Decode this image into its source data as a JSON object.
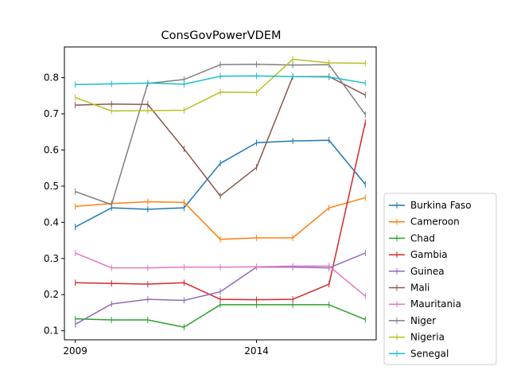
{
  "chart_data": {
    "type": "line",
    "title": "ConsGovPowerVDEM",
    "xlabel": "",
    "ylabel": "",
    "x": [
      2009,
      2010,
      2011,
      2012,
      2013,
      2014,
      2015,
      2016,
      2017
    ],
    "xticks": [
      2009,
      2014
    ],
    "xlim": [
      2008.7,
      2017.3
    ],
    "ylim": [
      0.075,
      0.885
    ],
    "yticks": [
      0.1,
      0.2,
      0.3,
      0.4,
      0.5,
      0.6,
      0.7,
      0.8
    ],
    "ytick_labels": [
      "0.1",
      "0.2",
      "0.3",
      "0.4",
      "0.5",
      "0.6",
      "0.7",
      "0.8"
    ],
    "legend_position": "lower-right-outside",
    "grid": false,
    "marker": "vertical-tick",
    "series": [
      {
        "name": "Burkina Faso",
        "color": "#1f77b4",
        "values": [
          0.387,
          0.44,
          0.436,
          0.44,
          0.563,
          0.62,
          0.625,
          0.627,
          0.505
        ]
      },
      {
        "name": "Cameroon",
        "color": "#ff7f0e",
        "values": [
          0.444,
          0.452,
          0.457,
          0.455,
          0.353,
          0.357,
          0.357,
          0.44,
          0.468
        ]
      },
      {
        "name": "Chad",
        "color": "#2ca02c",
        "values": [
          0.133,
          0.13,
          0.13,
          0.11,
          0.172,
          0.172,
          0.172,
          0.172,
          0.131
        ]
      },
      {
        "name": "Gambia",
        "color": "#d62728",
        "values": [
          0.233,
          0.231,
          0.229,
          0.233,
          0.187,
          0.186,
          0.187,
          0.229,
          0.676
        ]
      },
      {
        "name": "Guinea",
        "color": "#9467bd",
        "values": [
          0.118,
          0.174,
          0.187,
          0.184,
          0.208,
          0.276,
          0.276,
          0.274,
          0.315
        ]
      },
      {
        "name": "Mali",
        "color": "#8c564b",
        "values": [
          0.724,
          0.727,
          0.726,
          0.603,
          0.473,
          0.552,
          0.803,
          0.803,
          0.752
        ]
      },
      {
        "name": "Mauritania",
        "color": "#e377c2",
        "values": [
          0.315,
          0.274,
          0.274,
          0.276,
          0.276,
          0.277,
          0.279,
          0.279,
          0.196
        ]
      },
      {
        "name": "Niger",
        "color": "#7f7f7f",
        "values": [
          0.485,
          0.449,
          0.784,
          0.795,
          0.836,
          0.837,
          0.835,
          0.836,
          0.698
        ]
      },
      {
        "name": "Nigeria",
        "color": "#bcbd22",
        "values": [
          0.745,
          0.708,
          0.709,
          0.71,
          0.76,
          0.759,
          0.851,
          0.841,
          0.84
        ]
      },
      {
        "name": "Senegal",
        "color": "#17becf",
        "values": [
          0.781,
          0.783,
          0.785,
          0.782,
          0.804,
          0.805,
          0.803,
          0.802,
          0.785
        ]
      }
    ]
  }
}
